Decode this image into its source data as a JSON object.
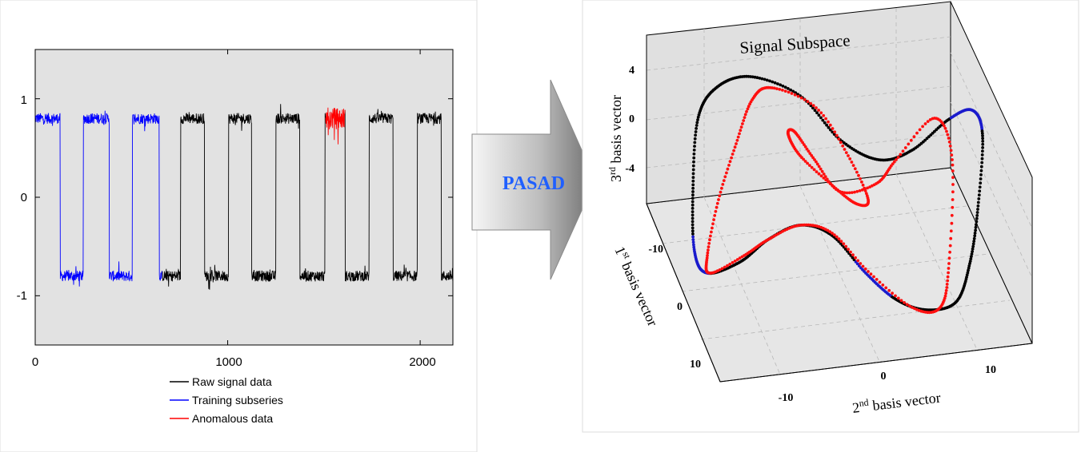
{
  "left_panel": {
    "chart_data": {
      "type": "line",
      "x_ticks": [
        "0",
        "1000",
        "2000"
      ],
      "y_ticks": [
        "1",
        "0",
        "-1"
      ],
      "xlim": [
        0,
        2170
      ],
      "ylim": [
        -1.5,
        1.5
      ],
      "series": [
        {
          "name": "Raw signal data",
          "color": "#000000"
        },
        {
          "name": "Training subseries",
          "color": "#0000ff"
        },
        {
          "name": "Anomalous data",
          "color": "#ff0000"
        }
      ],
      "square_wave": {
        "high_level": 0.8,
        "low_level": -0.8,
        "transitions": [
          130,
          250,
          385,
          505,
          645,
          755,
          880,
          1005,
          1125,
          1250,
          1375,
          1505,
          1610,
          1735,
          1860,
          1985,
          2110
        ],
        "training_end": 660,
        "anomaly_range": [
          1510,
          1610
        ]
      }
    }
  },
  "arrow": {
    "label": "PASAD",
    "label_color": "#1f5fff"
  },
  "right_panel": {
    "title": "Signal Subspace",
    "axis_z_label": {
      "num": "3",
      "sup": "rd",
      "rest": " basis vector"
    },
    "axis_x_label": {
      "num": "1",
      "sup": "st",
      "rest": " basis vector"
    },
    "axis_y_label": {
      "num": "2",
      "sup": "nd",
      "rest": " basis vector"
    },
    "z_ticks": [
      "4",
      "0",
      "-4"
    ],
    "x_ticks": [
      "-10",
      "0",
      "10"
    ],
    "y_ticks": [
      "-10",
      "0",
      "10"
    ],
    "colors": {
      "normal": "#000000",
      "training": "#1a1acc",
      "anomaly": "#ff1010"
    }
  }
}
